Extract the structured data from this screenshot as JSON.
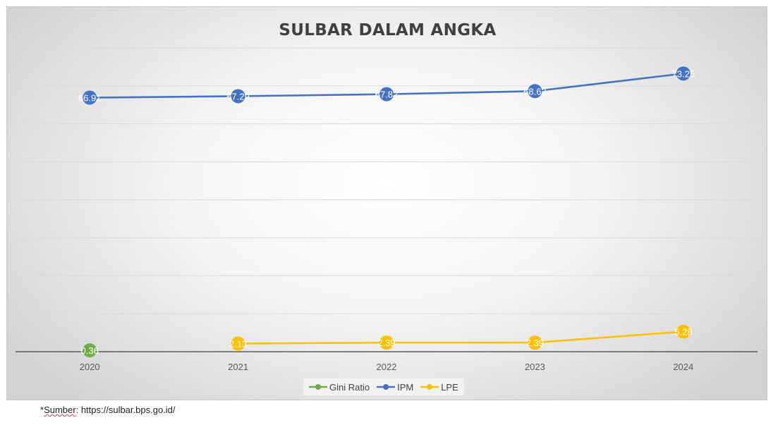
{
  "chart_data": {
    "type": "line",
    "title": "SULBAR DALAM ANGKA",
    "categories": [
      "2020",
      "2021",
      "2022",
      "2023",
      "2024"
    ],
    "ylim": [
      0,
      80
    ],
    "grid": true,
    "legend_position": "bottom",
    "series": [
      {
        "name": "Gini Ratio",
        "color": "#70ad47",
        "values": [
          0.36,
          null,
          null,
          null,
          null
        ],
        "labels": [
          "0.36",
          "",
          "",
          "",
          ""
        ]
      },
      {
        "name": "IPM",
        "color": "#4472c4",
        "values": [
          66.91,
          67.29,
          67.82,
          68.62,
          73.25
        ],
        "labels": [
          "66.91",
          "67.29",
          "67.82",
          "68.62",
          "73.25"
        ]
      },
      {
        "name": "LPE",
        "color": "#ffc000",
        "values": [
          null,
          2.13,
          2.39,
          2.39,
          5.28
        ],
        "labels": [
          "",
          "2.13",
          "2.39",
          "2.39",
          "5.28"
        ]
      }
    ]
  },
  "footer": {
    "source_prefix": "*",
    "source_word": "Sumber",
    "source_rest": ": https://sulbar.bps.go.id/"
  }
}
